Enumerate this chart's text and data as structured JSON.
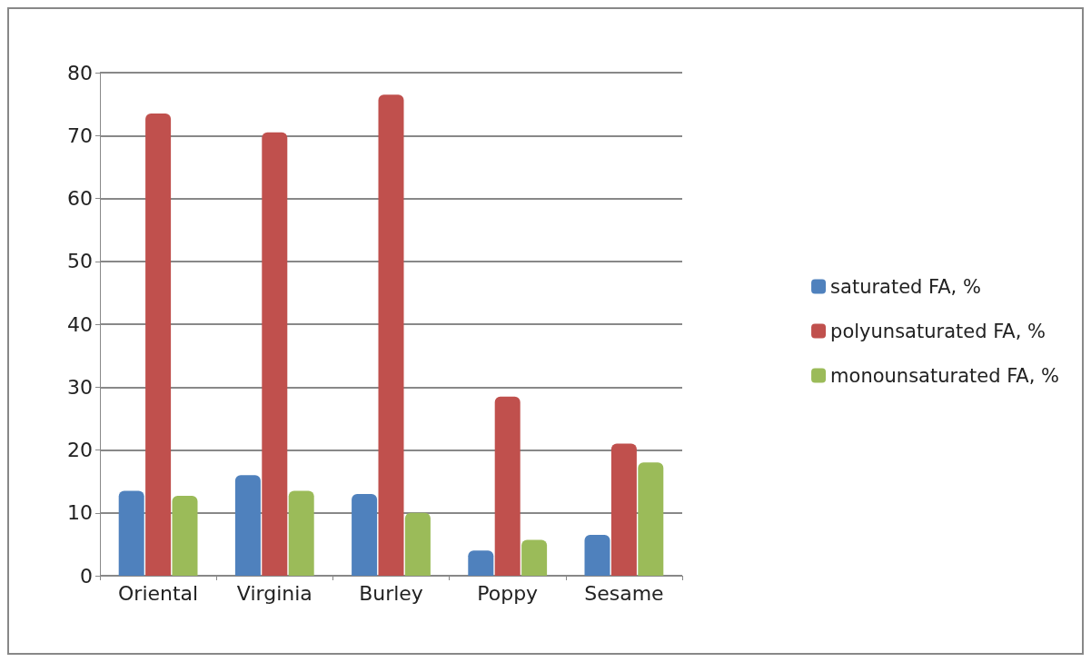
{
  "chart_data": {
    "type": "bar",
    "categories": [
      "Oriental",
      "Virginia",
      "Burley",
      "Poppy",
      "Sesame"
    ],
    "series": [
      {
        "name": "saturated FA, %",
        "color": "#4f81bd",
        "values": [
          13.5,
          16,
          13,
          4,
          6.5
        ]
      },
      {
        "name": "polyunsaturated FA, %",
        "color": "#c0504d",
        "values": [
          73.5,
          70.5,
          76.5,
          28.5,
          21
        ]
      },
      {
        "name": "monounsaturated FA, %",
        "color": "#9bbb59",
        "values": [
          12.7,
          13.5,
          10,
          5.7,
          18
        ]
      }
    ],
    "ylim": [
      0,
      80
    ],
    "yticks": [
      0,
      10,
      20,
      30,
      40,
      50,
      60,
      70,
      80
    ],
    "grid": "y",
    "legend": "right"
  }
}
